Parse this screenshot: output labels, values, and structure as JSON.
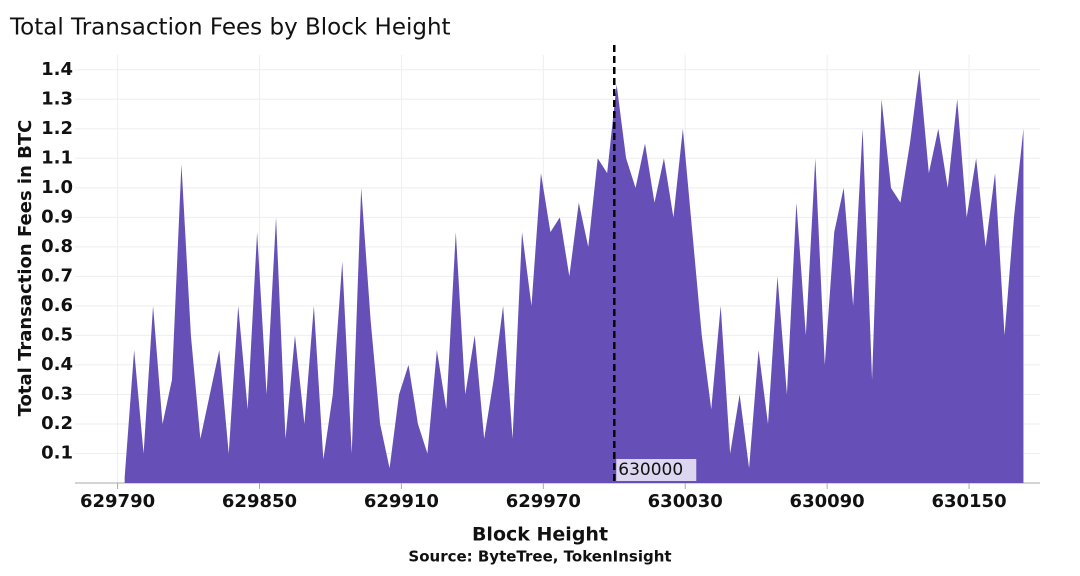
{
  "chart_data": {
    "type": "area",
    "title": "Total Transaction Fees by Block Height",
    "xlabel": "Block Height",
    "ylabel": "Total Transaction Fees in BTC",
    "source": "Source: ByteTree, TokenInsight",
    "color": "#6650b8",
    "grid": true,
    "vline": 630000,
    "xlim": [
      629772,
      630180
    ],
    "ylim": [
      0,
      1.45
    ],
    "xticks": [
      629790,
      629850,
      629910,
      629970,
      630030,
      630090,
      630150
    ],
    "yticks": [
      0.1,
      0.2,
      0.3,
      0.4,
      0.5,
      0.6,
      0.7,
      0.8,
      0.9,
      {
        "value": 1,
        "label": "1.0"
      },
      1.1,
      1.2,
      1.3,
      1.4
    ],
    "x": [
      629793,
      629797,
      629801,
      629805,
      629809,
      629813,
      629817,
      629821,
      629825,
      629829,
      629833,
      629837,
      629841,
      629845,
      629849,
      629853,
      629857,
      629861,
      629865,
      629869,
      629873,
      629877,
      629881,
      629885,
      629889,
      629893,
      629897,
      629901,
      629905,
      629909,
      629913,
      629917,
      629921,
      629925,
      629929,
      629933,
      629937,
      629941,
      629945,
      629949,
      629953,
      629957,
      629961,
      629965,
      629969,
      629973,
      629977,
      629981,
      629985,
      629989,
      629993,
      629997,
      630001,
      630005,
      630009,
      630013,
      630017,
      630021,
      630025,
      630029,
      630033,
      630037,
      630041,
      630045,
      630049,
      630053,
      630057,
      630061,
      630065,
      630069,
      630073,
      630077,
      630081,
      630085,
      630089,
      630093,
      630097,
      630101,
      630105,
      630109,
      630113,
      630117,
      630121,
      630125,
      630129,
      630133,
      630137,
      630141,
      630145,
      630149,
      630153,
      630157,
      630161,
      630165,
      630169,
      630173
    ],
    "values": [
      0.02,
      0.45,
      0.1,
      0.6,
      0.2,
      0.35,
      1.08,
      0.5,
      0.15,
      0.3,
      0.45,
      0.1,
      0.6,
      0.25,
      0.85,
      0.3,
      0.9,
      0.15,
      0.5,
      0.2,
      0.6,
      0.08,
      0.3,
      0.75,
      0.1,
      1.0,
      0.55,
      0.2,
      0.05,
      0.3,
      0.4,
      0.2,
      0.1,
      0.45,
      0.25,
      0.85,
      0.3,
      0.5,
      0.15,
      0.35,
      0.6,
      0.15,
      0.85,
      0.6,
      1.05,
      0.85,
      0.9,
      0.7,
      0.95,
      0.8,
      1.1,
      1.05,
      1.35,
      1.1,
      1.0,
      1.15,
      0.95,
      1.1,
      0.9,
      1.2,
      0.85,
      0.5,
      0.25,
      0.6,
      0.1,
      0.3,
      0.05,
      0.45,
      0.2,
      0.7,
      0.3,
      0.95,
      0.5,
      1.1,
      0.4,
      0.85,
      1.0,
      0.6,
      1.2,
      0.35,
      1.3,
      1.0,
      0.95,
      1.15,
      1.4,
      1.05,
      1.2,
      1.0,
      1.3,
      0.9,
      1.1,
      0.8,
      1.05,
      0.5,
      0.9,
      1.2
    ]
  }
}
